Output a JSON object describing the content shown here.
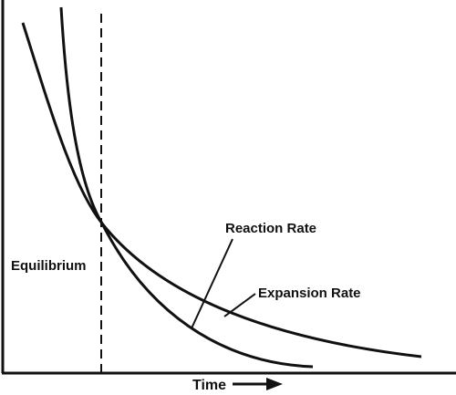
{
  "labels": {
    "equilibrium": "Equilibrium",
    "reaction_rate": "Reaction Rate",
    "expansion_rate": "Expansion Rate",
    "time": "Time"
  },
  "colors": {
    "ink": "#111111",
    "background": "#ffffff"
  },
  "icons": {
    "time_direction": "right-arrow-icon"
  }
}
